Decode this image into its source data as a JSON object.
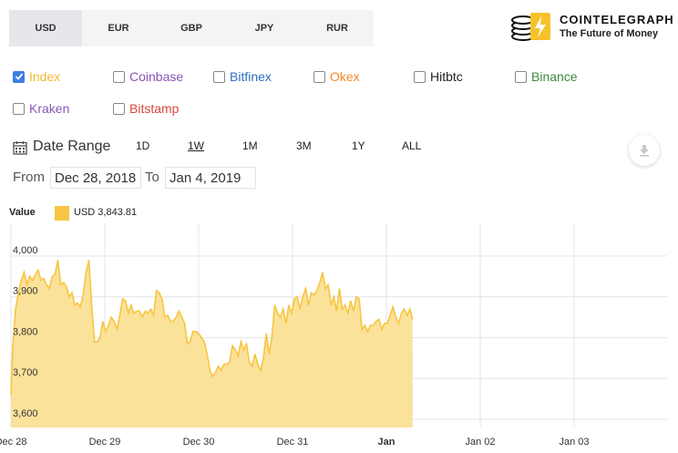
{
  "currency_tabs": [
    "USD",
    "EUR",
    "GBP",
    "JPY",
    "RUR"
  ],
  "active_currency": "USD",
  "brand": {
    "name": "COINTELEGRAPH",
    "tagline": "The Future of Money"
  },
  "exchanges": [
    {
      "label": "Index",
      "checked": true,
      "color": "#f5b731"
    },
    {
      "label": "Coinbase",
      "checked": false,
      "color": "#8a55b8"
    },
    {
      "label": "Bitfinex",
      "checked": false,
      "color": "#2e6fc0"
    },
    {
      "label": "Okex",
      "checked": false,
      "color": "#ee8a2a"
    },
    {
      "label": "Hitbtc",
      "checked": false,
      "color": "#222222"
    },
    {
      "label": "Binance",
      "checked": false,
      "color": "#3c8a3c"
    },
    {
      "label": "Kraken",
      "checked": false,
      "color": "#8a55b8"
    },
    {
      "label": "Bitstamp",
      "checked": false,
      "color": "#d9483a"
    }
  ],
  "date_range": {
    "title": "Date Range",
    "options": [
      "1D",
      "1W",
      "1M",
      "3M",
      "1Y",
      "ALL"
    ],
    "active": "1W",
    "from_label": "From",
    "from_value": "Dec 28, 2018",
    "to_label": "To",
    "to_value": "Jan 4, 2019"
  },
  "value_display": {
    "label": "Value",
    "text": "USD  3,843.81"
  },
  "chart_data": {
    "type": "area",
    "series": [
      {
        "color": "#f7c541",
        "fill": "#fbe29a",
        "points": [
          [
            0.0,
            3660
          ],
          [
            0.02,
            3780
          ],
          [
            0.05,
            3870
          ],
          [
            0.08,
            3910
          ],
          [
            0.11,
            3940
          ],
          [
            0.14,
            3960
          ],
          [
            0.17,
            3930
          ],
          [
            0.2,
            3950
          ],
          [
            0.23,
            3940
          ],
          [
            0.26,
            3955
          ],
          [
            0.29,
            3965
          ],
          [
            0.32,
            3940
          ],
          [
            0.35,
            3945
          ],
          [
            0.38,
            3930
          ],
          [
            0.41,
            3920
          ],
          [
            0.44,
            3950
          ],
          [
            0.47,
            3955
          ],
          [
            0.5,
            3990
          ],
          [
            0.53,
            3930
          ],
          [
            0.56,
            3935
          ],
          [
            0.59,
            3925
          ],
          [
            0.62,
            3900
          ],
          [
            0.65,
            3910
          ],
          [
            0.68,
            3880
          ],
          [
            0.71,
            3885
          ],
          [
            0.74,
            3875
          ],
          [
            0.77,
            3905
          ],
          [
            0.8,
            3960
          ],
          [
            0.83,
            3990
          ],
          [
            0.86,
            3880
          ],
          [
            0.89,
            3790
          ],
          [
            0.92,
            3790
          ],
          [
            0.95,
            3800
          ],
          [
            0.98,
            3840
          ],
          [
            1.01,
            3815
          ],
          [
            1.04,
            3830
          ],
          [
            1.07,
            3850
          ],
          [
            1.1,
            3840
          ],
          [
            1.13,
            3820
          ],
          [
            1.16,
            3855
          ],
          [
            1.19,
            3895
          ],
          [
            1.22,
            3890
          ],
          [
            1.25,
            3860
          ],
          [
            1.28,
            3880
          ],
          [
            1.31,
            3860
          ],
          [
            1.34,
            3865
          ],
          [
            1.37,
            3865
          ],
          [
            1.4,
            3850
          ],
          [
            1.43,
            3865
          ],
          [
            1.46,
            3860
          ],
          [
            1.49,
            3870
          ],
          [
            1.52,
            3855
          ],
          [
            1.55,
            3915
          ],
          [
            1.58,
            3910
          ],
          [
            1.61,
            3895
          ],
          [
            1.64,
            3850
          ],
          [
            1.67,
            3855
          ],
          [
            1.7,
            3840
          ],
          [
            1.73,
            3840
          ],
          [
            1.76,
            3850
          ],
          [
            1.79,
            3865
          ],
          [
            1.82,
            3850
          ],
          [
            1.85,
            3835
          ],
          [
            1.88,
            3785
          ],
          [
            1.91,
            3790
          ],
          [
            1.94,
            3815
          ],
          [
            1.97,
            3815
          ],
          [
            2.0,
            3810
          ],
          [
            2.03,
            3800
          ],
          [
            2.06,
            3790
          ],
          [
            2.09,
            3760
          ],
          [
            2.12,
            3720
          ],
          [
            2.15,
            3705
          ],
          [
            2.18,
            3715
          ],
          [
            2.21,
            3730
          ],
          [
            2.24,
            3720
          ],
          [
            2.27,
            3735
          ],
          [
            2.3,
            3735
          ],
          [
            2.33,
            3740
          ],
          [
            2.36,
            3780
          ],
          [
            2.39,
            3770
          ],
          [
            2.42,
            3755
          ],
          [
            2.45,
            3790
          ],
          [
            2.48,
            3770
          ],
          [
            2.51,
            3785
          ],
          [
            2.54,
            3740
          ],
          [
            2.57,
            3730
          ],
          [
            2.6,
            3760
          ],
          [
            2.63,
            3735
          ],
          [
            2.66,
            3720
          ],
          [
            2.69,
            3750
          ],
          [
            2.72,
            3810
          ],
          [
            2.75,
            3760
          ],
          [
            2.78,
            3800
          ],
          [
            2.81,
            3880
          ],
          [
            2.84,
            3860
          ],
          [
            2.87,
            3850
          ],
          [
            2.9,
            3870
          ],
          [
            2.93,
            3835
          ],
          [
            2.96,
            3880
          ],
          [
            2.99,
            3860
          ],
          [
            3.02,
            3895
          ],
          [
            3.05,
            3900
          ],
          [
            3.08,
            3870
          ],
          [
            3.11,
            3900
          ],
          [
            3.14,
            3920
          ],
          [
            3.17,
            3880
          ],
          [
            3.2,
            3910
          ],
          [
            3.23,
            3905
          ],
          [
            3.26,
            3915
          ],
          [
            3.29,
            3935
          ],
          [
            3.32,
            3960
          ],
          [
            3.35,
            3920
          ],
          [
            3.38,
            3930
          ],
          [
            3.41,
            3880
          ],
          [
            3.44,
            3900
          ],
          [
            3.47,
            3865
          ],
          [
            3.5,
            3920
          ],
          [
            3.53,
            3870
          ],
          [
            3.56,
            3880
          ],
          [
            3.59,
            3860
          ],
          [
            3.62,
            3890
          ],
          [
            3.65,
            3865
          ],
          [
            3.68,
            3900
          ],
          [
            3.71,
            3895
          ],
          [
            3.74,
            3820
          ],
          [
            3.77,
            3830
          ],
          [
            3.8,
            3815
          ],
          [
            3.83,
            3830
          ],
          [
            3.86,
            3830
          ],
          [
            3.89,
            3840
          ],
          [
            3.92,
            3845
          ],
          [
            3.95,
            3820
          ],
          [
            3.98,
            3835
          ],
          [
            4.01,
            3835
          ],
          [
            4.04,
            3855
          ],
          [
            4.07,
            3875
          ],
          [
            4.1,
            3850
          ],
          [
            4.13,
            3835
          ],
          [
            4.16,
            3860
          ],
          [
            4.19,
            3870
          ],
          [
            4.22,
            3855
          ],
          [
            4.25,
            3870
          ],
          [
            4.28,
            3845
          ]
        ]
      }
    ],
    "x_ticks": [
      {
        "x": 0.0,
        "label": "Dec 28",
        "bold": false
      },
      {
        "x": 1.0,
        "label": "Dec 29",
        "bold": false
      },
      {
        "x": 2.0,
        "label": "Dec 30",
        "bold": false
      },
      {
        "x": 3.0,
        "label": "Dec 31",
        "bold": false
      },
      {
        "x": 4.0,
        "label": "Jan",
        "bold": true
      },
      {
        "x": 5.0,
        "label": "Jan 02",
        "bold": false
      },
      {
        "x": 6.0,
        "label": "Jan 03",
        "bold": false
      }
    ],
    "y_ticks": [
      3600,
      3700,
      3800,
      3900,
      4000
    ],
    "y_tick_labels": [
      "3,600",
      "3,700",
      "3,800",
      "3,900",
      "4,000"
    ],
    "ylim": [
      3580,
      4080
    ],
    "grid": true
  }
}
